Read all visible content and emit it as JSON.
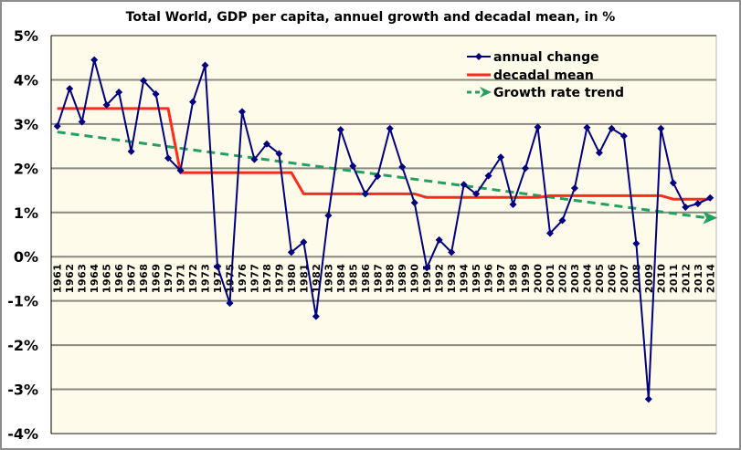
{
  "chart_data": {
    "type": "line",
    "title": "Total World, GDP per capita, annuel growth and decadal mean, in %",
    "xlabel": "",
    "ylabel": "",
    "ylim": [
      -4,
      5
    ],
    "y_ticks": [
      5,
      4,
      3,
      2,
      1,
      0,
      -1,
      -2,
      -3,
      -4
    ],
    "y_tick_labels": [
      "5%",
      "4%",
      "3%",
      "2%",
      "1%",
      "0%",
      "-1%",
      "-2%",
      "-3%",
      "-4%"
    ],
    "grid": "horizontal",
    "legend_position": "top-right",
    "x": [
      1961,
      1962,
      1963,
      1964,
      1965,
      1966,
      1967,
      1968,
      1969,
      1970,
      1971,
      1972,
      1973,
      1974,
      1975,
      1976,
      1977,
      1978,
      1979,
      1980,
      1981,
      1982,
      1983,
      1984,
      1985,
      1986,
      1987,
      1988,
      1989,
      1990,
      1991,
      1992,
      1993,
      1994,
      1995,
      1996,
      1997,
      1998,
      1999,
      2000,
      2001,
      2002,
      2003,
      2004,
      2005,
      2006,
      2007,
      2008,
      2009,
      2010,
      2011,
      2012,
      2013,
      2014
    ],
    "series": [
      {
        "name": "annual change",
        "color": "#000080",
        "style": "line-with-diamond-markers",
        "values": [
          2.95,
          3.8,
          3.05,
          4.45,
          3.43,
          3.72,
          2.38,
          3.98,
          3.68,
          2.23,
          1.95,
          3.5,
          4.33,
          -0.22,
          -1.05,
          3.28,
          2.2,
          2.55,
          2.33,
          0.1,
          0.33,
          -1.35,
          0.93,
          2.87,
          2.05,
          1.42,
          1.82,
          2.9,
          2.03,
          1.22,
          -0.25,
          0.38,
          0.1,
          1.63,
          1.42,
          1.83,
          2.25,
          1.18,
          2.0,
          2.93,
          0.53,
          0.82,
          1.55,
          2.92,
          2.35,
          2.9,
          2.73,
          0.3,
          -3.22,
          2.9,
          1.67,
          1.12,
          1.2,
          1.33
        ]
      },
      {
        "name": "decadal mean",
        "color": "#ff2a1a",
        "style": "solid",
        "values": [
          3.35,
          3.35,
          3.35,
          3.35,
          3.35,
          3.35,
          3.35,
          3.35,
          3.35,
          3.35,
          1.9,
          1.9,
          1.9,
          1.9,
          1.9,
          1.9,
          1.9,
          1.9,
          1.9,
          1.9,
          1.42,
          1.42,
          1.42,
          1.42,
          1.42,
          1.42,
          1.42,
          1.42,
          1.42,
          1.42,
          1.34,
          1.34,
          1.34,
          1.34,
          1.34,
          1.34,
          1.34,
          1.34,
          1.34,
          1.34,
          1.38,
          1.38,
          1.38,
          1.38,
          1.38,
          1.38,
          1.38,
          1.38,
          1.38,
          1.38,
          1.3,
          1.3,
          1.3,
          1.3
        ]
      },
      {
        "name": "Growth rate trend",
        "color": "#22a060",
        "style": "dashed-with-arrow",
        "start": {
          "x": 1961,
          "y": 2.82
        },
        "end": {
          "x": 2014,
          "y": 0.88
        }
      }
    ]
  },
  "colors": {
    "plot_background": "#fefbea",
    "gridline": "#8a8a80",
    "frame_border": "#8c8c8c"
  }
}
